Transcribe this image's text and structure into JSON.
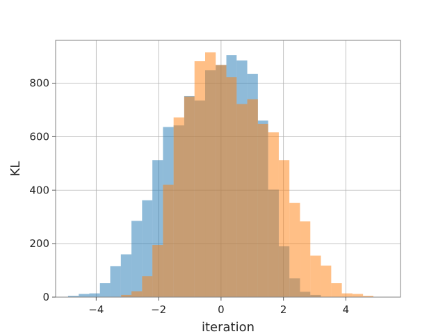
{
  "chart_data": {
    "type": "histogram",
    "title": "",
    "xlabel": "iteration",
    "ylabel": "KL",
    "xlim": [
      -5.3,
      5.75
    ],
    "ylim": [
      0,
      960
    ],
    "xticks": [
      -4,
      -2,
      0,
      2,
      4
    ],
    "yticks": [
      0,
      200,
      400,
      600,
      800
    ],
    "grid": true,
    "legend": "none",
    "series": [
      {
        "color": "#1f77b4",
        "opacity": 0.5,
        "bin_edges": [
          -4.9,
          -4.56,
          -4.22,
          -3.88,
          -3.55,
          -3.21,
          -2.87,
          -2.53,
          -2.2,
          -1.86,
          -1.52,
          -1.18,
          -0.85,
          -0.51,
          -0.17,
          0.17,
          0.5,
          0.84,
          1.18,
          1.51,
          1.85,
          2.19,
          2.53,
          2.86,
          3.2
        ],
        "counts": [
          5,
          12,
          14,
          52,
          116,
          160,
          285,
          362,
          512,
          636,
          642,
          752,
          735,
          848,
          868,
          905,
          885,
          835,
          660,
          402,
          190,
          70,
          20,
          8
        ]
      },
      {
        "color": "#ff7f0e",
        "opacity": 0.5,
        "bin_edges": [
          -3.2,
          -2.87,
          -2.53,
          -2.2,
          -1.86,
          -1.52,
          -1.18,
          -0.85,
          -0.51,
          -0.17,
          0.17,
          0.5,
          0.84,
          1.18,
          1.51,
          1.85,
          2.19,
          2.53,
          2.86,
          3.2,
          3.53,
          3.87,
          4.21,
          4.55,
          4.88
        ],
        "counts": [
          8,
          22,
          78,
          195,
          420,
          672,
          750,
          882,
          915,
          868,
          822,
          722,
          740,
          648,
          616,
          512,
          352,
          283,
          155,
          118,
          52,
          14,
          12,
          5
        ]
      }
    ]
  }
}
